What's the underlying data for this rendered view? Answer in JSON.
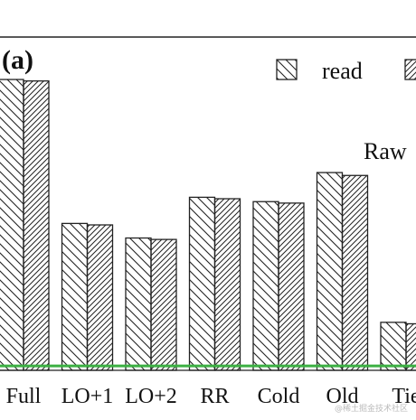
{
  "chart_data": {
    "type": "bar",
    "panel_label": "(a)",
    "categories": [
      "Full",
      "LO+1",
      "LO+2",
      "RR",
      "Cold",
      "Old",
      "Tie"
    ],
    "series": [
      {
        "name": "read",
        "values": [
          1.0,
          0.505,
          0.455,
          0.595,
          0.58,
          0.68,
          0.165
        ],
        "pattern": "back-diagonal-sparse"
      },
      {
        "name": "",
        "values": [
          0.995,
          0.5,
          0.45,
          0.59,
          0.575,
          0.67,
          0.16
        ],
        "pattern": "forward-diagonal-dense"
      }
    ],
    "ylim": [
      0,
      1.0
    ],
    "reference_line": {
      "value": 0.015,
      "color": "#3cb043"
    },
    "annotation": "Raw",
    "legend_position": "top-right",
    "grid": false,
    "xlabel": "",
    "ylabel": "",
    "colors": {
      "bar_stroke": "#222222",
      "hatch": "#222222",
      "reference_line": "#3cb043"
    }
  },
  "watermark": "@稀土掘金技术社区"
}
